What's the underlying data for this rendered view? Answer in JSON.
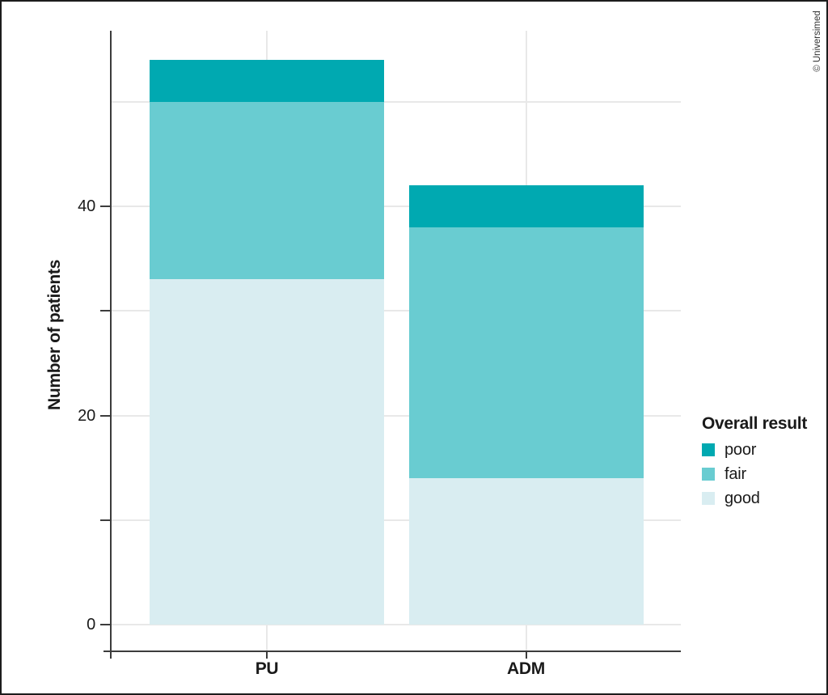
{
  "credit": "© Universimed",
  "chart_data": {
    "type": "bar",
    "stacked": true,
    "title": "",
    "xlabel": "",
    "ylabel": "Number of patients",
    "categories": [
      "PU",
      "ADM"
    ],
    "series": [
      {
        "name": "good",
        "color": "#d9edf1",
        "values": [
          33,
          14
        ]
      },
      {
        "name": "fair",
        "color": "#69ccd1",
        "values": [
          17,
          24
        ]
      },
      {
        "name": "poor",
        "color": "#00a9b1",
        "values": [
          4,
          4
        ]
      }
    ],
    "ylim": [
      -2.5,
      57
    ],
    "ygrid_values": [
      0,
      10,
      20,
      30,
      40,
      50
    ],
    "yticks": [
      {
        "value": 0,
        "label": "0"
      },
      {
        "value": 10,
        "label": ""
      },
      {
        "value": 20,
        "label": "20"
      },
      {
        "value": 30,
        "label": ""
      },
      {
        "value": 40,
        "label": "40"
      }
    ],
    "grid": true,
    "legend": {
      "title": "Overall result",
      "position": "right",
      "items": [
        "poor",
        "fair",
        "good"
      ]
    },
    "colors": {
      "poor": "#00a9b1",
      "fair": "#69ccd1",
      "good": "#d9edf1",
      "axis": "#3c3c3c",
      "gridline": "#e8e8e8",
      "text": "#1a1a1a",
      "frame": "#1c1c1c"
    }
  }
}
